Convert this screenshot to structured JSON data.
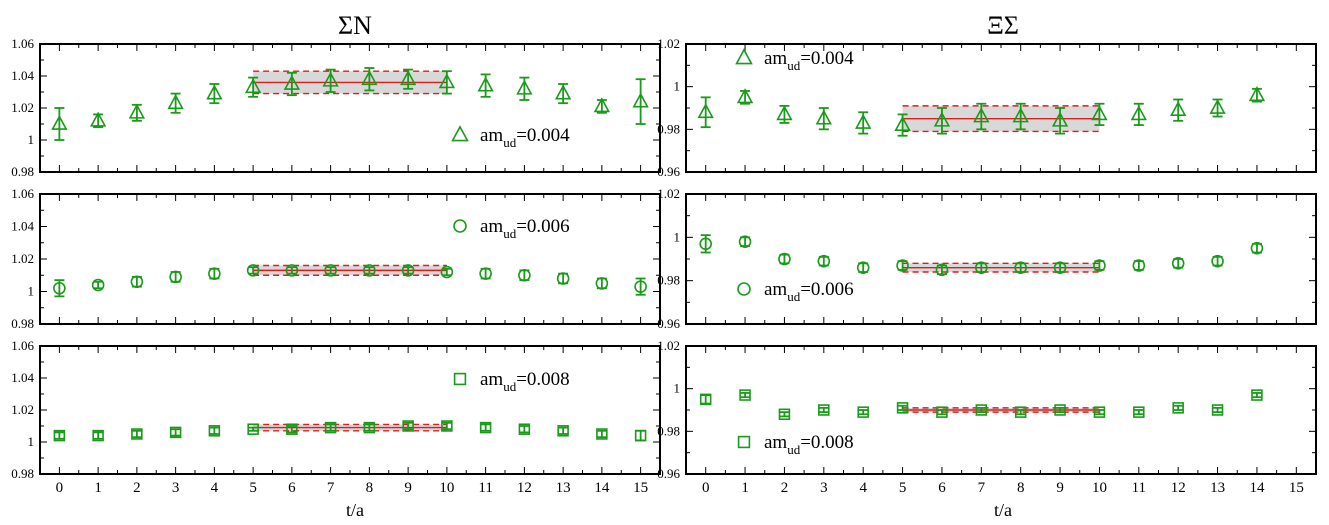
{
  "figure": {
    "columns": [
      {
        "title": "ΣN",
        "xlabel": "t/a"
      },
      {
        "title": "ΞΣ",
        "xlabel": "t/a"
      }
    ],
    "colors": {
      "data": "#1a9a1a",
      "fit": "#d62020",
      "band": "#d8d8d8",
      "frame": "#000000"
    }
  },
  "chart_data": [
    {
      "type": "scatter",
      "title": "",
      "xlabel": "",
      "ylabel": "",
      "panel_row": 0,
      "panel_col": 0,
      "xlim": [
        -0.5,
        15.5
      ],
      "ylim": [
        0.98,
        1.06
      ],
      "yticks": [
        "0.98",
        "1",
        "1.02",
        "1.04",
        "1.06"
      ],
      "xticks": [],
      "marker": "triangle",
      "marker_icon": "triangle-marker-icon",
      "legend": {
        "prefix": "am",
        "sub": "ud",
        "suffix": "=0.004",
        "placement": "lower-right"
      },
      "x": [
        0,
        1,
        2,
        3,
        4,
        5,
        6,
        7,
        8,
        9,
        10,
        11,
        12,
        13,
        14,
        15
      ],
      "y": [
        1.01,
        1.012,
        1.017,
        1.023,
        1.029,
        1.033,
        1.035,
        1.037,
        1.038,
        1.038,
        1.036,
        1.034,
        1.032,
        1.029,
        1.021,
        1.024
      ],
      "err": [
        0.01,
        0.004,
        0.005,
        0.006,
        0.006,
        0.006,
        0.007,
        0.007,
        0.007,
        0.006,
        0.007,
        0.007,
        0.007,
        0.006,
        0.004,
        0.014
      ],
      "fit": {
        "x_range": [
          5,
          10
        ],
        "value": 1.036,
        "error": 0.007
      }
    },
    {
      "type": "scatter",
      "title": "",
      "xlabel": "",
      "ylabel": "",
      "panel_row": 1,
      "panel_col": 0,
      "xlim": [
        -0.5,
        15.5
      ],
      "ylim": [
        0.98,
        1.06
      ],
      "yticks": [
        "0.98",
        "1",
        "1.02",
        "1.04",
        "1.06"
      ],
      "xticks": [],
      "marker": "circle",
      "marker_icon": "circle-marker-icon",
      "legend": {
        "prefix": "am",
        "sub": "ud",
        "suffix": "=0.006",
        "placement": "upper-right"
      },
      "x": [
        0,
        1,
        2,
        3,
        4,
        5,
        6,
        7,
        8,
        9,
        10,
        11,
        12,
        13,
        14,
        15
      ],
      "y": [
        1.002,
        1.004,
        1.006,
        1.009,
        1.011,
        1.013,
        1.013,
        1.013,
        1.013,
        1.013,
        1.012,
        1.011,
        1.01,
        1.008,
        1.005,
        1.003
      ],
      "err": [
        0.005,
        0.002,
        0.003,
        0.003,
        0.003,
        0.002,
        0.002,
        0.002,
        0.002,
        0.002,
        0.002,
        0.003,
        0.003,
        0.003,
        0.003,
        0.005
      ],
      "fit": {
        "x_range": [
          5,
          10
        ],
        "value": 1.013,
        "error": 0.003
      }
    },
    {
      "type": "scatter",
      "title": "",
      "xlabel": "t/a",
      "ylabel": "",
      "panel_row": 2,
      "panel_col": 0,
      "xlim": [
        -0.5,
        15.5
      ],
      "ylim": [
        0.98,
        1.06
      ],
      "yticks": [
        "0.98",
        "1",
        "1.02",
        "1.04",
        "1.06"
      ],
      "xticks": [
        "0",
        "1",
        "2",
        "3",
        "4",
        "5",
        "6",
        "7",
        "8",
        "9",
        "10",
        "11",
        "12",
        "13",
        "14",
        "15"
      ],
      "marker": "square",
      "marker_icon": "square-marker-icon",
      "legend": {
        "prefix": "am",
        "sub": "ud",
        "suffix": "=0.008",
        "placement": "upper-right"
      },
      "x": [
        0,
        1,
        2,
        3,
        4,
        5,
        6,
        7,
        8,
        9,
        10,
        11,
        12,
        13,
        14,
        15
      ],
      "y": [
        1.004,
        1.004,
        1.005,
        1.006,
        1.007,
        1.008,
        1.008,
        1.009,
        1.009,
        1.01,
        1.01,
        1.009,
        1.008,
        1.007,
        1.005,
        1.004
      ],
      "err": [
        0.002,
        0.002,
        0.002,
        0.002,
        0.002,
        0.001,
        0.002,
        0.002,
        0.002,
        0.002,
        0.002,
        0.002,
        0.002,
        0.002,
        0.002,
        0.003
      ],
      "fit": {
        "x_range": [
          5,
          10
        ],
        "value": 1.009,
        "error": 0.002
      }
    },
    {
      "type": "scatter",
      "title": "",
      "xlabel": "",
      "ylabel": "",
      "panel_row": 0,
      "panel_col": 1,
      "xlim": [
        -0.5,
        15.5
      ],
      "ylim": [
        0.96,
        1.02
      ],
      "yticks": [
        "0.96",
        "0.98",
        "1",
        "1.02"
      ],
      "xticks": [],
      "marker": "triangle",
      "marker_icon": "triangle-marker-icon",
      "legend": {
        "prefix": "am",
        "sub": "ud",
        "suffix": "=0.004",
        "placement": "upper-left"
      },
      "x": [
        0,
        1,
        2,
        3,
        4,
        5,
        6,
        7,
        8,
        9,
        10,
        11,
        12,
        13,
        14
      ],
      "y": [
        0.988,
        0.995,
        0.987,
        0.985,
        0.983,
        0.982,
        0.984,
        0.986,
        0.986,
        0.984,
        0.987,
        0.987,
        0.989,
        0.99,
        0.996
      ],
      "err": [
        0.007,
        0.003,
        0.004,
        0.005,
        0.005,
        0.005,
        0.006,
        0.006,
        0.006,
        0.006,
        0.005,
        0.005,
        0.005,
        0.004,
        0.003
      ],
      "fit": {
        "x_range": [
          5,
          10
        ],
        "value": 0.985,
        "error": 0.006
      }
    },
    {
      "type": "scatter",
      "title": "",
      "xlabel": "",
      "ylabel": "",
      "panel_row": 1,
      "panel_col": 1,
      "xlim": [
        -0.5,
        15.5
      ],
      "ylim": [
        0.96,
        1.02
      ],
      "yticks": [
        "0.96",
        "0.98",
        "1",
        "1.02"
      ],
      "xticks": [],
      "marker": "circle",
      "marker_icon": "circle-marker-icon",
      "legend": {
        "prefix": "am",
        "sub": "ud",
        "suffix": "=0.006",
        "placement": "lower-left"
      },
      "x": [
        0,
        1,
        2,
        3,
        4,
        5,
        6,
        7,
        8,
        9,
        10,
        11,
        12,
        13,
        14
      ],
      "y": [
        0.997,
        0.998,
        0.99,
        0.989,
        0.986,
        0.987,
        0.985,
        0.986,
        0.986,
        0.986,
        0.987,
        0.987,
        0.988,
        0.989,
        0.995
      ],
      "err": [
        0.004,
        0.002,
        0.002,
        0.002,
        0.002,
        0.002,
        0.002,
        0.002,
        0.002,
        0.002,
        0.002,
        0.002,
        0.002,
        0.002,
        0.002
      ],
      "fit": {
        "x_range": [
          5,
          10
        ],
        "value": 0.986,
        "error": 0.002
      }
    },
    {
      "type": "scatter",
      "title": "",
      "xlabel": "t/a",
      "ylabel": "",
      "panel_row": 2,
      "panel_col": 1,
      "xlim": [
        -0.5,
        15.5
      ],
      "ylim": [
        0.96,
        1.02
      ],
      "yticks": [
        "0.96",
        "0.98",
        "1",
        "1.02"
      ],
      "xticks": [
        "0",
        "1",
        "2",
        "3",
        "4",
        "5",
        "6",
        "7",
        "8",
        "9",
        "10",
        "11",
        "12",
        "13",
        "14",
        "15"
      ],
      "marker": "square",
      "marker_icon": "square-marker-icon",
      "legend": {
        "prefix": "am",
        "sub": "ud",
        "suffix": "=0.008",
        "placement": "lower-left"
      },
      "x": [
        0,
        1,
        2,
        3,
        4,
        5,
        6,
        7,
        8,
        9,
        10,
        11,
        12,
        13,
        14
      ],
      "y": [
        0.995,
        0.997,
        0.988,
        0.99,
        0.989,
        0.991,
        0.989,
        0.99,
        0.989,
        0.99,
        0.989,
        0.989,
        0.991,
        0.99,
        0.997
      ],
      "err": [
        0.002,
        0.001,
        0.001,
        0.001,
        0.001,
        0.001,
        0.001,
        0.001,
        0.001,
        0.001,
        0.001,
        0.001,
        0.001,
        0.001,
        0.001
      ],
      "fit": {
        "x_range": [
          5,
          10
        ],
        "value": 0.99,
        "error": 0.001
      }
    }
  ]
}
